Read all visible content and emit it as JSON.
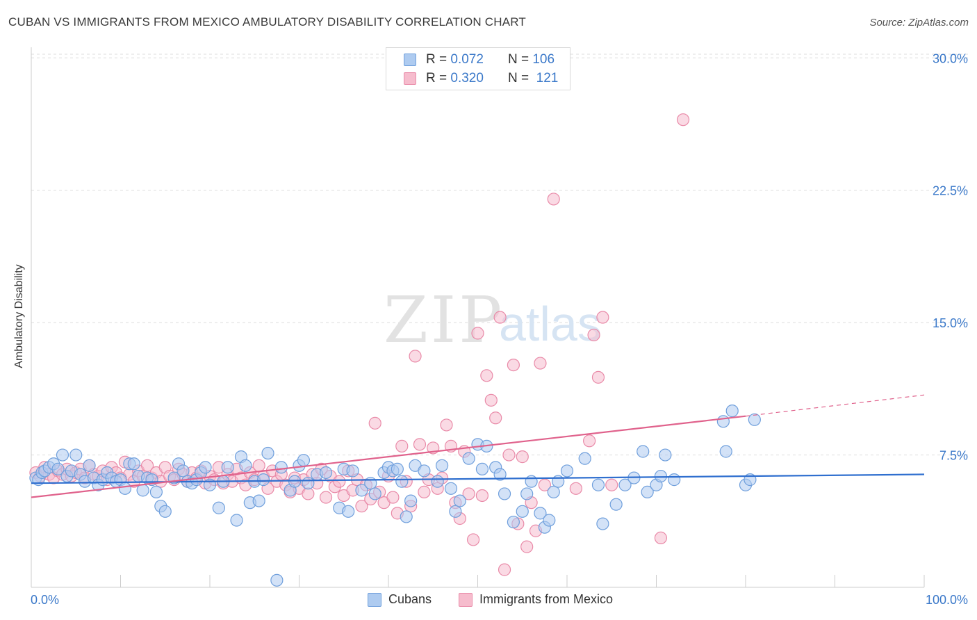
{
  "title": "CUBAN VS IMMIGRANTS FROM MEXICO AMBULATORY DISABILITY CORRELATION CHART",
  "source": "Source: ZipAtlas.com",
  "watermark": {
    "zip": "ZIP",
    "atlas": "atlas"
  },
  "legend": {
    "rows": [
      {
        "r_label": "R =",
        "r_value": "0.072",
        "n_label": "N =",
        "n_value": "106"
      },
      {
        "r_label": "R =",
        "r_value": "0.320",
        "n_label": "N =",
        "n_value": "121"
      }
    ]
  },
  "bottom_legend": {
    "cubans": "Cubans",
    "mexico": "Immigrants from Mexico"
  },
  "chart_data": {
    "type": "scatter",
    "title": "CUBAN VS IMMIGRANTS FROM MEXICO AMBULATORY DISABILITY CORRELATION CHART",
    "xlabel": "",
    "ylabel": "Ambulatory Disability",
    "xlim": [
      0,
      100
    ],
    "ylim": [
      0,
      30
    ],
    "x_tick_labels": [
      "0.0%",
      "100.0%"
    ],
    "y_ticks": [
      7.5,
      15.0,
      22.5,
      30.0
    ],
    "y_tick_labels": [
      "7.5%",
      "15.0%",
      "22.5%",
      "30.0%"
    ],
    "grid": true,
    "legend_position": "top-center",
    "colors": {
      "cubans_fill": "#aecbf0",
      "cubans_stroke": "#6f9fdc",
      "cubans_line": "#2f6fcf",
      "mexico_fill": "#f6bccd",
      "mexico_stroke": "#e98aa8",
      "mexico_line": "#e0628c",
      "tick_label": "#3a78c9",
      "grid": "#dddddd"
    },
    "series": [
      {
        "name": "Cubans",
        "stats": {
          "R": 0.072,
          "N": 106
        },
        "trend": {
          "x0": 0,
          "y0": 5.9,
          "x1": 100,
          "y1": 6.4
        },
        "points": [
          [
            0.5,
            6.2
          ],
          [
            0.8,
            6.1
          ],
          [
            1.2,
            6.5
          ],
          [
            1.5,
            6.6
          ],
          [
            2.0,
            6.8
          ],
          [
            2.5,
            7.0
          ],
          [
            3.0,
            6.7
          ],
          [
            3.5,
            7.5
          ],
          [
            4.0,
            6.3
          ],
          [
            4.5,
            6.6
          ],
          [
            5.0,
            7.5
          ],
          [
            5.5,
            6.4
          ],
          [
            6.0,
            6.0
          ],
          [
            6.5,
            6.9
          ],
          [
            7.0,
            6.2
          ],
          [
            7.5,
            5.8
          ],
          [
            8.0,
            6.1
          ],
          [
            8.5,
            6.5
          ],
          [
            9.0,
            6.2
          ],
          [
            9.5,
            6.0
          ],
          [
            10.0,
            6.1
          ],
          [
            10.5,
            5.6
          ],
          [
            11.0,
            7.0
          ],
          [
            11.5,
            7.0
          ],
          [
            12.0,
            6.3
          ],
          [
            12.5,
            5.5
          ],
          [
            13.0,
            6.2
          ],
          [
            13.5,
            6.1
          ],
          [
            14.0,
            5.4
          ],
          [
            14.5,
            4.6
          ],
          [
            15.0,
            4.3
          ],
          [
            16.0,
            6.2
          ],
          [
            16.5,
            7.0
          ],
          [
            17.0,
            6.6
          ],
          [
            17.5,
            6.0
          ],
          [
            18.0,
            5.9
          ],
          [
            18.5,
            6.1
          ],
          [
            19.0,
            6.5
          ],
          [
            19.5,
            6.8
          ],
          [
            20.0,
            5.8
          ],
          [
            21.0,
            4.5
          ],
          [
            21.5,
            6.0
          ],
          [
            22.0,
            6.8
          ],
          [
            23.0,
            3.8
          ],
          [
            23.5,
            7.4
          ],
          [
            24.0,
            6.9
          ],
          [
            24.5,
            4.8
          ],
          [
            25.0,
            6.0
          ],
          [
            25.5,
            4.9
          ],
          [
            26.0,
            6.1
          ],
          [
            26.5,
            7.6
          ],
          [
            28.0,
            6.8
          ],
          [
            29.0,
            5.5
          ],
          [
            29.5,
            6.0
          ],
          [
            30.0,
            6.9
          ],
          [
            30.5,
            7.2
          ],
          [
            31.0,
            5.9
          ],
          [
            32.0,
            6.4
          ],
          [
            33.0,
            6.5
          ],
          [
            34.5,
            4.5
          ],
          [
            35.0,
            6.7
          ],
          [
            35.5,
            4.3
          ],
          [
            36.0,
            6.6
          ],
          [
            37.0,
            5.5
          ],
          [
            38.0,
            5.9
          ],
          [
            38.5,
            5.3
          ],
          [
            39.5,
            6.5
          ],
          [
            40.0,
            6.8
          ],
          [
            40.5,
            6.6
          ],
          [
            41.0,
            6.7
          ],
          [
            41.5,
            6.0
          ],
          [
            42.0,
            4.0
          ],
          [
            42.5,
            4.9
          ],
          [
            43.0,
            6.9
          ],
          [
            44.0,
            6.6
          ],
          [
            45.5,
            6.0
          ],
          [
            46.0,
            6.9
          ],
          [
            47.0,
            5.6
          ],
          [
            47.5,
            4.3
          ],
          [
            48.0,
            4.9
          ],
          [
            49.0,
            7.3
          ],
          [
            50.0,
            8.1
          ],
          [
            50.5,
            6.7
          ],
          [
            51.0,
            8.0
          ],
          [
            52.0,
            6.8
          ],
          [
            52.5,
            6.4
          ],
          [
            53.0,
            5.3
          ],
          [
            54.0,
            3.7
          ],
          [
            55.0,
            4.3
          ],
          [
            55.5,
            5.3
          ],
          [
            56.0,
            6.0
          ],
          [
            57.0,
            4.2
          ],
          [
            57.5,
            3.4
          ],
          [
            58.0,
            3.8
          ],
          [
            58.5,
            5.4
          ],
          [
            59.0,
            6.0
          ],
          [
            60.0,
            6.6
          ],
          [
            62.0,
            7.3
          ],
          [
            63.5,
            5.8
          ],
          [
            64.0,
            3.6
          ],
          [
            65.5,
            4.7
          ],
          [
            66.5,
            5.8
          ],
          [
            67.5,
            6.2
          ],
          [
            68.5,
            7.7
          ],
          [
            69.0,
            5.4
          ],
          [
            70.0,
            5.8
          ],
          [
            70.5,
            6.3
          ],
          [
            71.0,
            7.5
          ],
          [
            72.0,
            6.1
          ],
          [
            77.5,
            9.4
          ],
          [
            77.8,
            7.7
          ],
          [
            80.0,
            5.8
          ],
          [
            80.5,
            6.1
          ],
          [
            27.5,
            0.4
          ],
          [
            78.5,
            10.0
          ],
          [
            81.0,
            9.5
          ]
        ]
      },
      {
        "name": "Immigrants from Mexico",
        "stats": {
          "R": 0.32,
          "N": 121
        },
        "trend": {
          "x0": 0,
          "y0": 5.1,
          "x1": 80,
          "y1": 9.7,
          "dash_to_x": 100,
          "dash_to_y": 10.9
        },
        "points": [
          [
            0.5,
            6.5
          ],
          [
            1.0,
            6.3
          ],
          [
            1.5,
            6.8
          ],
          [
            2.0,
            6.4
          ],
          [
            2.5,
            6.2
          ],
          [
            3.0,
            6.6
          ],
          [
            3.5,
            6.4
          ],
          [
            4.0,
            6.7
          ],
          [
            4.5,
            6.3
          ],
          [
            5.0,
            6.5
          ],
          [
            5.5,
            6.7
          ],
          [
            6.0,
            6.2
          ],
          [
            6.5,
            6.9
          ],
          [
            7.0,
            6.4
          ],
          [
            7.5,
            6.3
          ],
          [
            8.0,
            6.6
          ],
          [
            8.5,
            6.1
          ],
          [
            9.0,
            6.8
          ],
          [
            9.5,
            6.5
          ],
          [
            10.0,
            6.2
          ],
          [
            10.5,
            7.1
          ],
          [
            11.0,
            6.4
          ],
          [
            11.5,
            6.0
          ],
          [
            12.0,
            6.6
          ],
          [
            12.5,
            6.3
          ],
          [
            13.0,
            6.9
          ],
          [
            13.5,
            6.2
          ],
          [
            14.0,
            6.5
          ],
          [
            14.5,
            6.0
          ],
          [
            15.0,
            6.8
          ],
          [
            15.5,
            6.3
          ],
          [
            16.0,
            6.1
          ],
          [
            16.5,
            6.7
          ],
          [
            17.0,
            6.4
          ],
          [
            17.5,
            6.0
          ],
          [
            18.0,
            6.5
          ],
          [
            18.5,
            6.2
          ],
          [
            19.0,
            6.6
          ],
          [
            19.5,
            5.9
          ],
          [
            20.0,
            6.3
          ],
          [
            20.5,
            6.1
          ],
          [
            21.0,
            6.8
          ],
          [
            21.5,
            5.9
          ],
          [
            22.0,
            6.4
          ],
          [
            22.5,
            6.0
          ],
          [
            23.0,
            6.7
          ],
          [
            23.5,
            6.2
          ],
          [
            24.0,
            5.8
          ],
          [
            24.5,
            6.5
          ],
          [
            25.0,
            6.1
          ],
          [
            25.5,
            6.9
          ],
          [
            26.0,
            6.3
          ],
          [
            26.5,
            5.6
          ],
          [
            27.0,
            6.6
          ],
          [
            27.5,
            6.0
          ],
          [
            28.0,
            6.4
          ],
          [
            28.5,
            5.8
          ],
          [
            29.0,
            5.4
          ],
          [
            29.5,
            6.2
          ],
          [
            30.0,
            5.6
          ],
          [
            30.5,
            6.1
          ],
          [
            31.0,
            5.3
          ],
          [
            31.5,
            6.4
          ],
          [
            32.0,
            5.9
          ],
          [
            32.5,
            6.7
          ],
          [
            33.0,
            5.1
          ],
          [
            33.5,
            6.3
          ],
          [
            34.0,
            5.7
          ],
          [
            34.5,
            6.0
          ],
          [
            35.0,
            5.2
          ],
          [
            35.5,
            6.6
          ],
          [
            36.0,
            5.5
          ],
          [
            36.5,
            6.1
          ],
          [
            37.0,
            4.6
          ],
          [
            37.5,
            5.8
          ],
          [
            38.0,
            5.0
          ],
          [
            38.5,
            9.3
          ],
          [
            39.0,
            5.4
          ],
          [
            39.5,
            4.8
          ],
          [
            40.0,
            6.3
          ],
          [
            40.5,
            5.1
          ],
          [
            41.0,
            4.2
          ],
          [
            41.5,
            8.0
          ],
          [
            42.0,
            6.0
          ],
          [
            42.5,
            4.6
          ],
          [
            43.0,
            13.1
          ],
          [
            43.5,
            8.1
          ],
          [
            44.0,
            5.4
          ],
          [
            44.5,
            6.1
          ],
          [
            45.0,
            7.9
          ],
          [
            45.5,
            5.6
          ],
          [
            46.0,
            6.2
          ],
          [
            46.5,
            9.2
          ],
          [
            47.0,
            8.0
          ],
          [
            47.5,
            4.8
          ],
          [
            48.0,
            3.9
          ],
          [
            48.5,
            7.7
          ],
          [
            49.0,
            5.3
          ],
          [
            49.5,
            2.7
          ],
          [
            50.0,
            14.4
          ],
          [
            50.5,
            5.2
          ],
          [
            51.0,
            12.0
          ],
          [
            51.5,
            10.6
          ],
          [
            52.0,
            9.6
          ],
          [
            52.5,
            15.3
          ],
          [
            53.0,
            1.0
          ],
          [
            53.5,
            7.5
          ],
          [
            54.0,
            12.6
          ],
          [
            54.5,
            3.6
          ],
          [
            55.0,
            7.4
          ],
          [
            55.5,
            2.3
          ],
          [
            56.0,
            4.8
          ],
          [
            56.5,
            3.2
          ],
          [
            57.0,
            12.7
          ],
          [
            57.5,
            5.8
          ],
          [
            58.5,
            22.0
          ],
          [
            61.0,
            5.6
          ],
          [
            62.5,
            8.3
          ],
          [
            63.0,
            14.3
          ],
          [
            63.5,
            11.9
          ],
          [
            64.0,
            15.3
          ],
          [
            65.0,
            5.8
          ],
          [
            70.5,
            2.8
          ],
          [
            73.0,
            26.5
          ]
        ]
      }
    ]
  }
}
